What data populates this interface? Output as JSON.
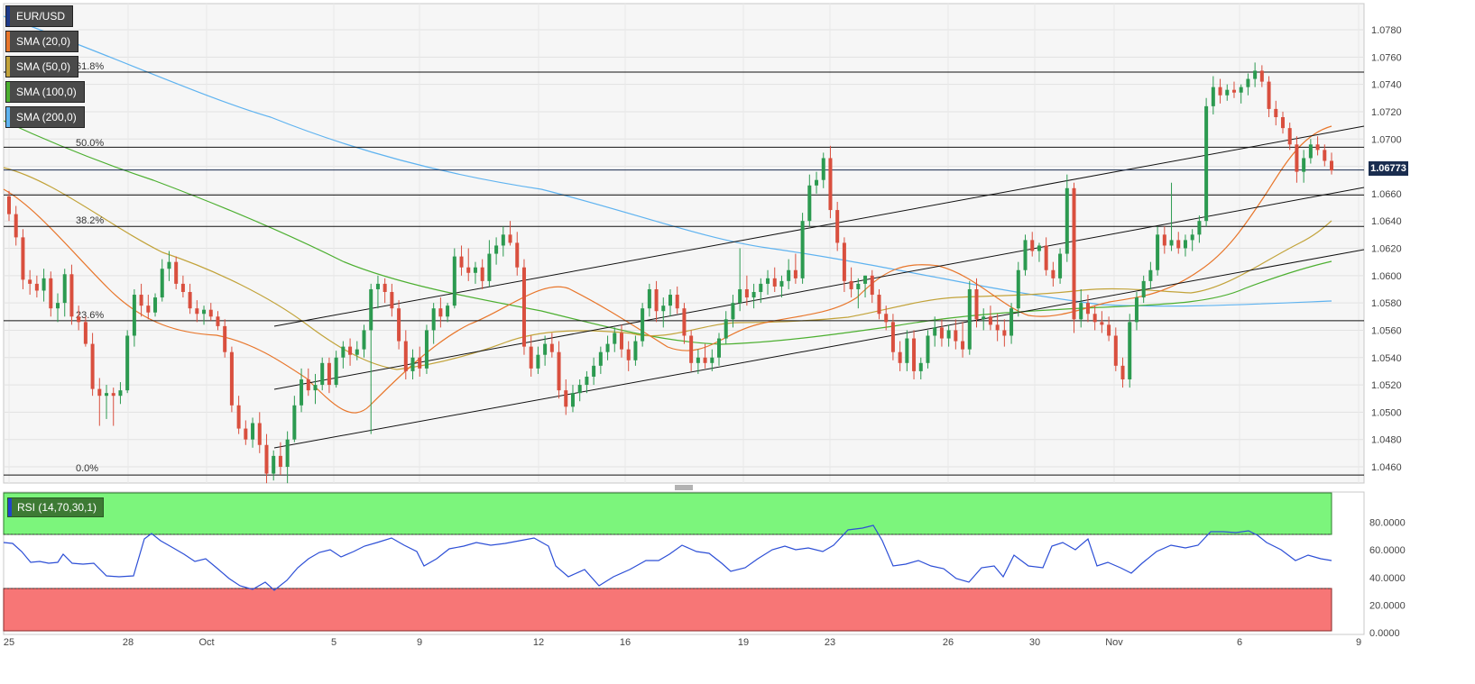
{
  "legend": [
    {
      "label": "EUR/USD",
      "color": "#1e3a8a"
    },
    {
      "label": "SMA (20,0)",
      "color": "#e8762b"
    },
    {
      "label": "SMA (50,0)",
      "color": "#c2a33a"
    },
    {
      "label": "SMA (100,0)",
      "color": "#4caf30"
    },
    {
      "label": "SMA (200,0)",
      "color": "#5fb3f0"
    }
  ],
  "rsi_label": "RSI (14,70,30,1)",
  "last_price_label": "1.06773",
  "fib_labels": {
    "f618": "61.8%",
    "f50": "50.0%",
    "f382": "38.2%",
    "f236": "23.6%",
    "f0": "0.0%"
  },
  "chart_data": {
    "type": "candlestick",
    "ylim": [
      1.045,
      1.079
    ],
    "yticks": [
      "1.0780",
      "1.0760",
      "1.0740",
      "1.0720",
      "1.0700",
      "1.0680",
      "1.0660",
      "1.0640",
      "1.0620",
      "1.0600",
      "1.0580",
      "1.0560",
      "1.0540",
      "1.0520",
      "1.0500",
      "1.0480",
      "1.0460"
    ],
    "xticks": [
      "25",
      "28",
      "Oct",
      "5",
      "9",
      "12",
      "16",
      "19",
      "23",
      "26",
      "30",
      "Nov",
      "6",
      "9"
    ],
    "fib_levels": [
      1.0749,
      1.0694,
      1.0659,
      1.0636,
      1.0567,
      1.0454
    ],
    "last_price": 1.06773,
    "candles": [
      [
        1.0658,
        1.0662,
        1.064,
        1.0645
      ],
      [
        1.0645,
        1.0651,
        1.0622,
        1.0628
      ],
      [
        1.0628,
        1.0634,
        1.059,
        1.0597
      ],
      [
        1.0597,
        1.0604,
        1.0586,
        1.0594
      ],
      [
        1.0594,
        1.06,
        1.0584,
        1.0589
      ],
      [
        1.0589,
        1.0605,
        1.0581,
        1.0598
      ],
      [
        1.0598,
        1.0603,
        1.057,
        1.0576
      ],
      [
        1.0576,
        1.0587,
        1.0566,
        1.058
      ],
      [
        1.058,
        1.0605,
        1.057,
        1.0601
      ],
      [
        1.0601,
        1.0608,
        1.0564,
        1.057
      ],
      [
        1.057,
        1.0578,
        1.056,
        1.0566
      ],
      [
        1.0566,
        1.057,
        1.0548,
        1.055
      ],
      [
        1.055,
        1.0558,
        1.0512,
        1.0517
      ],
      [
        1.0517,
        1.0525,
        1.049,
        1.0512
      ],
      [
        1.0512,
        1.052,
        1.0495,
        1.0514
      ],
      [
        1.0514,
        1.0518,
        1.049,
        1.0512
      ],
      [
        1.0512,
        1.0522,
        1.0506,
        1.0516
      ],
      [
        1.0516,
        1.056,
        1.0514,
        1.0556
      ],
      [
        1.0556,
        1.059,
        1.0548,
        1.0586
      ],
      [
        1.0586,
        1.0594,
        1.057,
        1.0578
      ],
      [
        1.0578,
        1.0586,
        1.0568,
        1.0573
      ],
      [
        1.0573,
        1.0587,
        1.057,
        1.0584
      ],
      [
        1.0584,
        1.0612,
        1.0581,
        1.0605
      ],
      [
        1.0605,
        1.0618,
        1.0596,
        1.061
      ],
      [
        1.061,
        1.0614,
        1.059,
        1.0594
      ],
      [
        1.0594,
        1.06,
        1.0584,
        1.0588
      ],
      [
        1.0588,
        1.0594,
        1.0572,
        1.0576
      ],
      [
        1.0576,
        1.0582,
        1.0566,
        1.0572
      ],
      [
        1.0572,
        1.0578,
        1.0564,
        1.0575
      ],
      [
        1.0575,
        1.058,
        1.0567,
        1.057
      ],
      [
        1.057,
        1.0574,
        1.056,
        1.0563
      ],
      [
        1.0563,
        1.0568,
        1.054,
        1.0544
      ],
      [
        1.0544,
        1.0548,
        1.05,
        1.0505
      ],
      [
        1.0505,
        1.0512,
        1.0484,
        1.0488
      ],
      [
        1.0488,
        1.0494,
        1.0476,
        1.048
      ],
      [
        1.048,
        1.0496,
        1.0474,
        1.0492
      ],
      [
        1.0492,
        1.05,
        1.047,
        1.0476
      ],
      [
        1.0476,
        1.0484,
        1.0448,
        1.0455
      ],
      [
        1.0455,
        1.0472,
        1.045,
        1.0468
      ],
      [
        1.0468,
        1.0478,
        1.0454,
        1.046
      ],
      [
        1.046,
        1.0486,
        1.0448,
        1.048
      ],
      [
        1.048,
        1.0512,
        1.0478,
        1.0505
      ],
      [
        1.0505,
        1.0532,
        1.05,
        1.0524
      ],
      [
        1.0524,
        1.0532,
        1.0512,
        1.0516
      ],
      [
        1.0516,
        1.0528,
        1.0506,
        1.052
      ],
      [
        1.052,
        1.054,
        1.0516,
        1.0536
      ],
      [
        1.0536,
        1.054,
        1.0514,
        1.052
      ],
      [
        1.052,
        1.0545,
        1.0518,
        1.054
      ],
      [
        1.054,
        1.0552,
        1.0532,
        1.0548
      ],
      [
        1.0548,
        1.0554,
        1.0534,
        1.0542
      ],
      [
        1.0542,
        1.0552,
        1.0538,
        1.0546
      ],
      [
        1.0546,
        1.0564,
        1.054,
        1.056
      ],
      [
        1.056,
        1.0594,
        1.0484,
        1.059
      ],
      [
        1.059,
        1.06,
        1.0576,
        1.0594
      ],
      [
        1.0594,
        1.0598,
        1.058,
        1.0588
      ],
      [
        1.0588,
        1.0594,
        1.057,
        1.0576
      ],
      [
        1.0576,
        1.0582,
        1.0546,
        1.0552
      ],
      [
        1.0552,
        1.056,
        1.0524,
        1.053
      ],
      [
        1.053,
        1.0546,
        1.0524,
        1.054
      ],
      [
        1.054,
        1.0548,
        1.0526,
        1.0532
      ],
      [
        1.0532,
        1.0564,
        1.0528,
        1.056
      ],
      [
        1.056,
        1.058,
        1.055,
        1.0576
      ],
      [
        1.0576,
        1.0584,
        1.0562,
        1.057
      ],
      [
        1.057,
        1.058,
        1.0566,
        1.0578
      ],
      [
        1.0578,
        1.062,
        1.0576,
        1.0614
      ],
      [
        1.0614,
        1.0622,
        1.06,
        1.0606
      ],
      [
        1.0606,
        1.062,
        1.0596,
        1.0602
      ],
      [
        1.0602,
        1.061,
        1.0594,
        1.0606
      ],
      [
        1.0606,
        1.0612,
        1.059,
        1.0596
      ],
      [
        1.0596,
        1.0626,
        1.0592,
        1.0616
      ],
      [
        1.0616,
        1.0628,
        1.0608,
        1.0622
      ],
      [
        1.0622,
        1.0636,
        1.0614,
        1.063
      ],
      [
        1.063,
        1.064,
        1.0622,
        1.0624
      ],
      [
        1.0624,
        1.0632,
        1.06,
        1.0606
      ],
      [
        1.0606,
        1.0612,
        1.0542,
        1.0548
      ],
      [
        1.0548,
        1.0556,
        1.0526,
        1.0532
      ],
      [
        1.0532,
        1.0548,
        1.0528,
        1.0542
      ],
      [
        1.0542,
        1.0556,
        1.0534,
        1.055
      ],
      [
        1.055,
        1.0558,
        1.054,
        1.0544
      ],
      [
        1.0544,
        1.0552,
        1.051,
        1.0516
      ],
      [
        1.0516,
        1.0524,
        1.0498,
        1.0504
      ],
      [
        1.0504,
        1.052,
        1.05,
        1.0514
      ],
      [
        1.0514,
        1.0524,
        1.0508,
        1.052
      ],
      [
        1.052,
        1.053,
        1.0514,
        1.0526
      ],
      [
        1.0526,
        1.054,
        1.052,
        1.0534
      ],
      [
        1.0534,
        1.0548,
        1.0528,
        1.0544
      ],
      [
        1.0544,
        1.0556,
        1.0538,
        1.055
      ],
      [
        1.055,
        1.0562,
        1.0544,
        1.0558
      ],
      [
        1.0558,
        1.0564,
        1.054,
        1.0546
      ],
      [
        1.0546,
        1.0552,
        1.053,
        1.0538
      ],
      [
        1.0538,
        1.0556,
        1.0534,
        1.0552
      ],
      [
        1.0552,
        1.058,
        1.0548,
        1.0576
      ],
      [
        1.0576,
        1.0594,
        1.057,
        1.059
      ],
      [
        1.059,
        1.0596,
        1.0566,
        1.0574
      ],
      [
        1.0574,
        1.0584,
        1.0562,
        1.0578
      ],
      [
        1.0578,
        1.059,
        1.057,
        1.0586
      ],
      [
        1.0586,
        1.0592,
        1.0572,
        1.0576
      ],
      [
        1.0576,
        1.058,
        1.055,
        1.0556
      ],
      [
        1.0556,
        1.056,
        1.053,
        1.0536
      ],
      [
        1.0536,
        1.0546,
        1.0528,
        1.054
      ],
      [
        1.054,
        1.055,
        1.0532,
        1.0536
      ],
      [
        1.0536,
        1.0546,
        1.053,
        1.054
      ],
      [
        1.054,
        1.0558,
        1.0534,
        1.0554
      ],
      [
        1.0554,
        1.0574,
        1.055,
        1.0568
      ],
      [
        1.0568,
        1.0586,
        1.0562,
        1.058
      ],
      [
        1.058,
        1.062,
        1.0574,
        1.059
      ],
      [
        1.059,
        1.06,
        1.0578,
        1.0584
      ],
      [
        1.0584,
        1.0594,
        1.0576,
        1.0588
      ],
      [
        1.0588,
        1.0598,
        1.058,
        1.0594
      ],
      [
        1.0594,
        1.0604,
        1.0586,
        1.0598
      ],
      [
        1.0598,
        1.0606,
        1.0588,
        1.0592
      ],
      [
        1.0592,
        1.06,
        1.0584,
        1.0596
      ],
      [
        1.0596,
        1.0612,
        1.059,
        1.0604
      ],
      [
        1.0604,
        1.0616,
        1.0594,
        1.0598
      ],
      [
        1.0598,
        1.0646,
        1.0594,
        1.064
      ],
      [
        1.064,
        1.0674,
        1.0636,
        1.0666
      ],
      [
        1.0666,
        1.0676,
        1.066,
        1.067
      ],
      [
        1.067,
        1.069,
        1.0664,
        1.0686
      ],
      [
        1.0686,
        1.0695,
        1.0642,
        1.0648
      ],
      [
        1.0648,
        1.0654,
        1.0618,
        1.0624
      ],
      [
        1.0624,
        1.0628,
        1.0588,
        1.0596
      ],
      [
        1.0596,
        1.0606,
        1.0584,
        1.059
      ],
      [
        1.059,
        1.0598,
        1.0576,
        1.0594
      ],
      [
        1.0594,
        1.06,
        1.0584,
        1.06
      ],
      [
        1.06,
        1.0604,
        1.058,
        1.0586
      ],
      [
        1.0586,
        1.059,
        1.0568,
        1.0572
      ],
      [
        1.0572,
        1.0578,
        1.056,
        1.0566
      ],
      [
        1.0566,
        1.0572,
        1.0538,
        1.0544
      ],
      [
        1.0544,
        1.0552,
        1.053,
        1.0536
      ],
      [
        1.0536,
        1.056,
        1.053,
        1.0554
      ],
      [
        1.0554,
        1.056,
        1.0524,
        1.053
      ],
      [
        1.053,
        1.054,
        1.0524,
        1.0536
      ],
      [
        1.0536,
        1.056,
        1.0532,
        1.0556
      ],
      [
        1.0556,
        1.057,
        1.0548,
        1.0562
      ],
      [
        1.0562,
        1.0568,
        1.0548,
        1.0554
      ],
      [
        1.0554,
        1.0564,
        1.0548,
        1.056
      ],
      [
        1.056,
        1.0568,
        1.0546,
        1.0552
      ],
      [
        1.0552,
        1.0566,
        1.054,
        1.0546
      ],
      [
        1.0546,
        1.0596,
        1.0542,
        1.059
      ],
      [
        1.059,
        1.0598,
        1.0562,
        1.0568
      ],
      [
        1.0568,
        1.0576,
        1.056,
        1.057
      ],
      [
        1.057,
        1.0578,
        1.056,
        1.0564
      ],
      [
        1.0564,
        1.0572,
        1.0552,
        1.056
      ],
      [
        1.056,
        1.0568,
        1.0548,
        1.0556
      ],
      [
        1.0556,
        1.058,
        1.055,
        1.0576
      ],
      [
        1.0576,
        1.061,
        1.057,
        1.0604
      ],
      [
        1.0604,
        1.063,
        1.06,
        1.0626
      ],
      [
        1.0626,
        1.0632,
        1.0614,
        1.0618
      ],
      [
        1.0618,
        1.0624,
        1.061,
        1.0622
      ],
      [
        1.0622,
        1.0628,
        1.06,
        1.0604
      ],
      [
        1.0604,
        1.061,
        1.0592,
        1.0598
      ],
      [
        1.0598,
        1.062,
        1.0594,
        1.0616
      ],
      [
        1.0616,
        1.0674,
        1.061,
        1.0664
      ],
      [
        1.0664,
        1.0668,
        1.0558,
        1.0568
      ],
      [
        1.0568,
        1.059,
        1.0562,
        1.058
      ],
      [
        1.058,
        1.0586,
        1.0566,
        1.0572
      ],
      [
        1.0572,
        1.0578,
        1.056,
        1.0566
      ],
      [
        1.0566,
        1.0574,
        1.0558,
        1.0564
      ],
      [
        1.0564,
        1.057,
        1.0552,
        1.0556
      ],
      [
        1.0556,
        1.0562,
        1.053,
        1.0534
      ],
      [
        1.0534,
        1.054,
        1.0518,
        1.0524
      ],
      [
        1.0524,
        1.0572,
        1.0518,
        1.0566
      ],
      [
        1.0566,
        1.0588,
        1.056,
        1.0584
      ],
      [
        1.0584,
        1.06,
        1.058,
        1.0596
      ],
      [
        1.0596,
        1.061,
        1.059,
        1.0604
      ],
      [
        1.0604,
        1.0636,
        1.06,
        1.063
      ],
      [
        1.063,
        1.0636,
        1.0616,
        1.0622
      ],
      [
        1.0622,
        1.0668,
        1.0618,
        1.0626
      ],
      [
        1.0626,
        1.0632,
        1.0616,
        1.062
      ],
      [
        1.062,
        1.063,
        1.0614,
        1.0626
      ],
      [
        1.0626,
        1.0634,
        1.0618,
        1.063
      ],
      [
        1.063,
        1.0644,
        1.0624,
        1.064
      ],
      [
        1.064,
        1.073,
        1.0636,
        1.0724
      ],
      [
        1.0724,
        1.0746,
        1.0718,
        1.0738
      ],
      [
        1.0738,
        1.0744,
        1.0726,
        1.0732
      ],
      [
        1.0732,
        1.074,
        1.0728,
        1.0736
      ],
      [
        1.0736,
        1.0742,
        1.073,
        1.0734
      ],
      [
        1.0734,
        1.074,
        1.0726,
        1.0738
      ],
      [
        1.0738,
        1.0748,
        1.0732,
        1.0744
      ],
      [
        1.0744,
        1.0756,
        1.0738,
        1.075
      ],
      [
        1.075,
        1.0754,
        1.0738,
        1.0742
      ],
      [
        1.0742,
        1.0746,
        1.0716,
        1.0722
      ],
      [
        1.0722,
        1.0728,
        1.071,
        1.0716
      ],
      [
        1.0716,
        1.072,
        1.0704,
        1.0708
      ],
      [
        1.0708,
        1.0712,
        1.0692,
        1.0696
      ],
      [
        1.0696,
        1.0702,
        1.0668,
        1.0676
      ],
      [
        1.0676,
        1.0692,
        1.0668,
        1.0686
      ],
      [
        1.0686,
        1.07,
        1.0682,
        1.0696
      ],
      [
        1.0696,
        1.0702,
        1.0688,
        1.0692
      ],
      [
        1.0692,
        1.0696,
        1.068,
        1.0684
      ],
      [
        1.0684,
        1.069,
        1.0674,
        1.0677
      ]
    ],
    "rsi": {
      "ylim": [
        0,
        100
      ],
      "yticks": [
        "80.0000",
        "60.0000",
        "40.0000",
        "20.0000",
        "0.0000"
      ],
      "overbought": 70,
      "oversold": 30
    }
  }
}
